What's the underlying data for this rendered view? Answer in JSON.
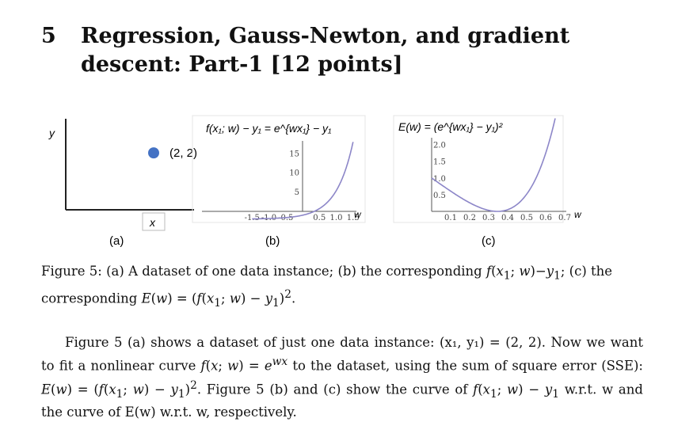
{
  "section": {
    "number": "5",
    "title": "Regression, Gauss-Newton, and gradient descent: Part-1 [12 points]"
  },
  "figure": {
    "panel_a": {
      "y_label": "y",
      "x_label": "x",
      "point_label": "(2, 2)",
      "point_color": "#4472c4",
      "sub_label": "(a)"
    },
    "panel_b": {
      "title": "f(x₁; w) − y₁ = e^{wx₁} − y₁",
      "x_label": "w",
      "sub_label": "(b)",
      "curve_color": "#8c86c8"
    },
    "panel_c": {
      "title": "E(w) = (e^{wx₁} − y₁)²",
      "x_label": "w",
      "sub_label": "(c)",
      "curve_color": "#8c86c8"
    }
  },
  "chart_data": [
    {
      "type": "scatter",
      "x": [
        2
      ],
      "y": [
        2
      ],
      "labels": [
        "(2, 2)"
      ],
      "xlabel": "x",
      "ylabel": "y"
    },
    {
      "type": "line",
      "function": "e^(2w) - 2",
      "xlabel": "w",
      "xticks": [
        "-1.5",
        "-1.0",
        "-0.5",
        "0.5",
        "1.0",
        "1.5"
      ],
      "yticks": [
        "5",
        "10",
        "15"
      ],
      "xlim": [
        -1.6,
        1.6
      ],
      "ylim": [
        -2,
        20
      ]
    },
    {
      "type": "line",
      "function": "(e^(2w) - 2)^2",
      "xlabel": "w",
      "xticks": [
        "0.1",
        "0.2",
        "0.3",
        "0.4",
        "0.5",
        "0.6",
        "0.7"
      ],
      "yticks": [
        "0.5",
        "1.0",
        "1.5",
        "2.0"
      ],
      "xlim": [
        0,
        0.75
      ],
      "ylim": [
        0,
        2.3
      ]
    }
  ],
  "caption": {
    "label": "Figure 5:",
    "part1": " (a) A dataset of one data instance; (b) the corresponding ",
    "part2": "; (c) the corresponding "
  },
  "paragraph": {
    "s1": "Figure 5 (a) shows a dataset of just one data instance: (x₁, y₁) = (2, 2). Now we want to fit a nonlinear curve ",
    "s2": " to the dataset, using the sum of square error (SSE): ",
    "s3": ". Figure 5 (b) and (c) show the curve of ",
    "s4": " w.r.t. w and the curve of E(w) w.r.t. w, respectively."
  }
}
